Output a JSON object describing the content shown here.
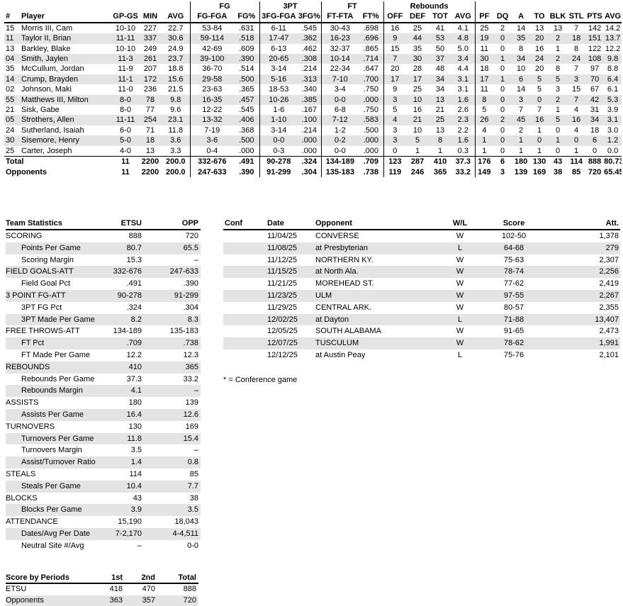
{
  "colors": {
    "background": "#ffffff",
    "text": "#000000",
    "stripe": "#e4e4e4",
    "border": "#000000"
  },
  "player_table": {
    "groups": [
      "",
      "FG",
      "3PT",
      "FT",
      "Rebounds",
      ""
    ],
    "columns": [
      "#",
      "Player",
      "GP-GS",
      "MIN",
      "AVG",
      "FG-FGA",
      "FG%",
      "3FG-FGA",
      "3FG%",
      "FT-FTA",
      "FT%",
      "OFF",
      "DEF",
      "TOT",
      "AVG",
      "PF",
      "DQ",
      "A",
      "TO",
      "BLK",
      "STL",
      "PTS",
      "AVG"
    ],
    "rows": [
      [
        "15",
        "Morris III, Cam",
        "10-10",
        "227",
        "22.7",
        "53-84",
        ".631",
        "6-11",
        ".545",
        "30-43",
        ".698",
        "16",
        "25",
        "41",
        "4.1",
        "25",
        "2",
        "14",
        "13",
        "13",
        "7",
        "142",
        "14.2"
      ],
      [
        "11",
        "Taylor II, Brian",
        "11-11",
        "337",
        "30.6",
        "59-114",
        ".518",
        "17-47",
        ".362",
        "16-23",
        ".696",
        "9",
        "44",
        "53",
        "4.8",
        "19",
        "0",
        "35",
        "20",
        "2",
        "18",
        "151",
        "13.7"
      ],
      [
        "13",
        "Barkley, Blake",
        "10-10",
        "249",
        "24.9",
        "42-69",
        ".609",
        "6-13",
        ".462",
        "32-37",
        ".865",
        "15",
        "35",
        "50",
        "5.0",
        "11",
        "0",
        "8",
        "16",
        "1",
        "8",
        "122",
        "12.2"
      ],
      [
        "04",
        "Smith, Jaylen",
        "11-3",
        "261",
        "23.7",
        "39-100",
        ".390",
        "20-65",
        ".308",
        "10-14",
        ".714",
        "7",
        "30",
        "37",
        "3.4",
        "30",
        "1",
        "34",
        "24",
        "2",
        "24",
        "108",
        "9.8"
      ],
      [
        "35",
        "McCullum, Jordan",
        "11-9",
        "207",
        "18.8",
        "36-70",
        ".514",
        "3-14",
        ".214",
        "22-34",
        ".647",
        "20",
        "28",
        "48",
        "4.4",
        "18",
        "0",
        "10",
        "20",
        "8",
        "7",
        "97",
        "8.8"
      ],
      [
        "14",
        "Crump, Brayden",
        "11-1",
        "172",
        "15.6",
        "29-58",
        ".500",
        "5-16",
        ".313",
        "7-10",
        ".700",
        "17",
        "17",
        "34",
        "3.1",
        "17",
        "1",
        "6",
        "5",
        "5",
        "3",
        "70",
        "6.4"
      ],
      [
        "02",
        "Johnson, Maki",
        "11-0",
        "236",
        "21.5",
        "23-63",
        ".365",
        "18-53",
        ".340",
        "3-4",
        ".750",
        "9",
        "25",
        "34",
        "3.1",
        "11",
        "0",
        "14",
        "5",
        "3",
        "15",
        "67",
        "6.1"
      ],
      [
        "55",
        "Matthews III, Milton",
        "8-0",
        "78",
        "9.8",
        "16-35",
        ".457",
        "10-26",
        ".385",
        "0-0",
        ".000",
        "3",
        "10",
        "13",
        "1.6",
        "8",
        "0",
        "3",
        "0",
        "2",
        "7",
        "42",
        "5.3"
      ],
      [
        "21",
        "Sisk, Gabe",
        "8-0",
        "77",
        "9.6",
        "12-22",
        ".545",
        "1-6",
        ".167",
        "6-8",
        ".750",
        "5",
        "16",
        "21",
        "2.6",
        "5",
        "0",
        "7",
        "7",
        "1",
        "4",
        "31",
        "3.9"
      ],
      [
        "05",
        "Strothers, Allen",
        "11-11",
        "254",
        "23.1",
        "13-32",
        ".406",
        "1-10",
        ".100",
        "7-12",
        ".583",
        "4",
        "21",
        "25",
        "2.3",
        "26",
        "2",
        "45",
        "16",
        "5",
        "16",
        "34",
        "3.1"
      ],
      [
        "24",
        "Sutherland, Isaiah",
        "6-0",
        "71",
        "11.8",
        "7-19",
        ".368",
        "3-14",
        ".214",
        "1-2",
        ".500",
        "3",
        "10",
        "13",
        "2.2",
        "4",
        "0",
        "2",
        "1",
        "0",
        "4",
        "18",
        "3.0"
      ],
      [
        "30",
        "Sisemore, Henry",
        "5-0",
        "18",
        "3.6",
        "3-6",
        ".500",
        "0-0",
        ".000",
        "0-2",
        ".000",
        "3",
        "5",
        "8",
        "1.6",
        "1",
        "0",
        "1",
        "0",
        "1",
        "0",
        "6",
        "1.2"
      ],
      [
        "25",
        "Carter, Joseph",
        "4-0",
        "13",
        "3.3",
        "0-4",
        ".000",
        "0-3",
        ".000",
        "0-0",
        ".000",
        "0",
        "1",
        "1",
        "0.3",
        "1",
        "0",
        "1",
        "1",
        "0",
        "1",
        "0",
        "0.0"
      ]
    ],
    "total": [
      "Total",
      "11",
      "2200",
      "200.0",
      "332-676",
      ".491",
      "90-278",
      ".324",
      "134-189",
      ".709",
      "123",
      "287",
      "410",
      "37.3",
      "176",
      "6",
      "180",
      "130",
      "43",
      "114",
      "888",
      "80.73"
    ],
    "opponents": [
      "Opponents",
      "11",
      "2200",
      "200.0",
      "247-633",
      ".390",
      "91-299",
      ".304",
      "135-183",
      ".738",
      "119",
      "246",
      "365",
      "33.2",
      "149",
      "3",
      "139",
      "169",
      "38",
      "85",
      "720",
      "65.45"
    ]
  },
  "team_stats": {
    "title": "Team Statistics",
    "col_team": "ETSU",
    "col_opp": "OPP",
    "rows": [
      [
        "SCORING",
        "888",
        "720",
        0
      ],
      [
        "Points Per Game",
        "80.7",
        "65.5",
        1
      ],
      [
        "Scoring Margin",
        "15.3",
        "–",
        1
      ],
      [
        "FIELD GOALS-ATT",
        "332-676",
        "247-633",
        0
      ],
      [
        "Field Goal Pct",
        ".491",
        ".390",
        1
      ],
      [
        "3 POINT FG-ATT",
        "90-278",
        "91-299",
        0
      ],
      [
        "3PT FG Pct",
        ".324",
        ".304",
        1
      ],
      [
        "3PT Made Per Game",
        "8.2",
        "8.3",
        1
      ],
      [
        "FREE THROWS-ATT",
        "134-189",
        "135-183",
        0
      ],
      [
        "FT Pct",
        ".709",
        ".738",
        1
      ],
      [
        "FT Made Per Game",
        "12.2",
        "12.3",
        1
      ],
      [
        "REBOUNDS",
        "410",
        "365",
        0
      ],
      [
        "Rebounds Per Game",
        "37.3",
        "33.2",
        1
      ],
      [
        "Rebounds Margin",
        "4.1",
        "–",
        1
      ],
      [
        "ASSISTS",
        "180",
        "139",
        0
      ],
      [
        "Assists Per Game",
        "16.4",
        "12.6",
        1
      ],
      [
        "TURNOVERS",
        "130",
        "169",
        0
      ],
      [
        "Turnovers Per Game",
        "11.8",
        "15.4",
        1
      ],
      [
        "Turnovers Margin",
        "3.5",
        "–",
        1
      ],
      [
        "Assist/Turnover Ratio",
        "1.4",
        "0.8",
        1
      ],
      [
        "STEALS",
        "114",
        "85",
        0
      ],
      [
        "Steals Per Game",
        "10.4",
        "7.7",
        1
      ],
      [
        "BLOCKS",
        "43",
        "38",
        0
      ],
      [
        "Blocks Per Game",
        "3.9",
        "3.5",
        1
      ],
      [
        "ATTENDANCE",
        "15,190",
        "18,043",
        0
      ],
      [
        "Dates/Avg Per Date",
        "7-2,170",
        "4-4,511",
        1
      ],
      [
        "Neutral Site #/Avg",
        "–",
        "0-0",
        1
      ]
    ]
  },
  "schedule": {
    "columns": [
      "Conf",
      "Date",
      "Opponent",
      "W/L",
      "Score",
      "Att."
    ],
    "rows": [
      [
        "",
        "11/04/25",
        "CONVERSE",
        "W",
        "102-50",
        "1,378"
      ],
      [
        "",
        "11/08/25",
        "at Presbyterian",
        "L",
        "64-68",
        "279"
      ],
      [
        "",
        "11/12/25",
        "NORTHERN KY.",
        "W",
        "75-63",
        "2,307"
      ],
      [
        "",
        "11/15/25",
        "at North Ala.",
        "W",
        "78-74",
        "2,256"
      ],
      [
        "",
        "11/21/25",
        "MOREHEAD ST.",
        "W",
        "77-62",
        "2,419"
      ],
      [
        "",
        "11/23/25",
        "ULM",
        "W",
        "97-55",
        "2,267"
      ],
      [
        "",
        "11/29/25",
        "CENTRAL ARK.",
        "W",
        "80-57",
        "2,355"
      ],
      [
        "",
        "12/02/25",
        "at Dayton",
        "L",
        "71-88",
        "13,407"
      ],
      [
        "",
        "12/05/25",
        "SOUTH ALABAMA",
        "W",
        "91-65",
        "2,473"
      ],
      [
        "",
        "12/07/25",
        "TUSCULUM",
        "W",
        "78-62",
        "1,991"
      ],
      [
        "",
        "12/12/25",
        "at Austin Peay",
        "L",
        "75-76",
        "2,101"
      ]
    ],
    "note": "* = Conference game"
  },
  "score_by_periods": {
    "title": "Score by Periods",
    "columns": [
      "1st",
      "2nd",
      "Total"
    ],
    "rows": [
      [
        "ETSU",
        "418",
        "470",
        "888"
      ],
      [
        "Opponents",
        "363",
        "357",
        "720"
      ]
    ]
  }
}
